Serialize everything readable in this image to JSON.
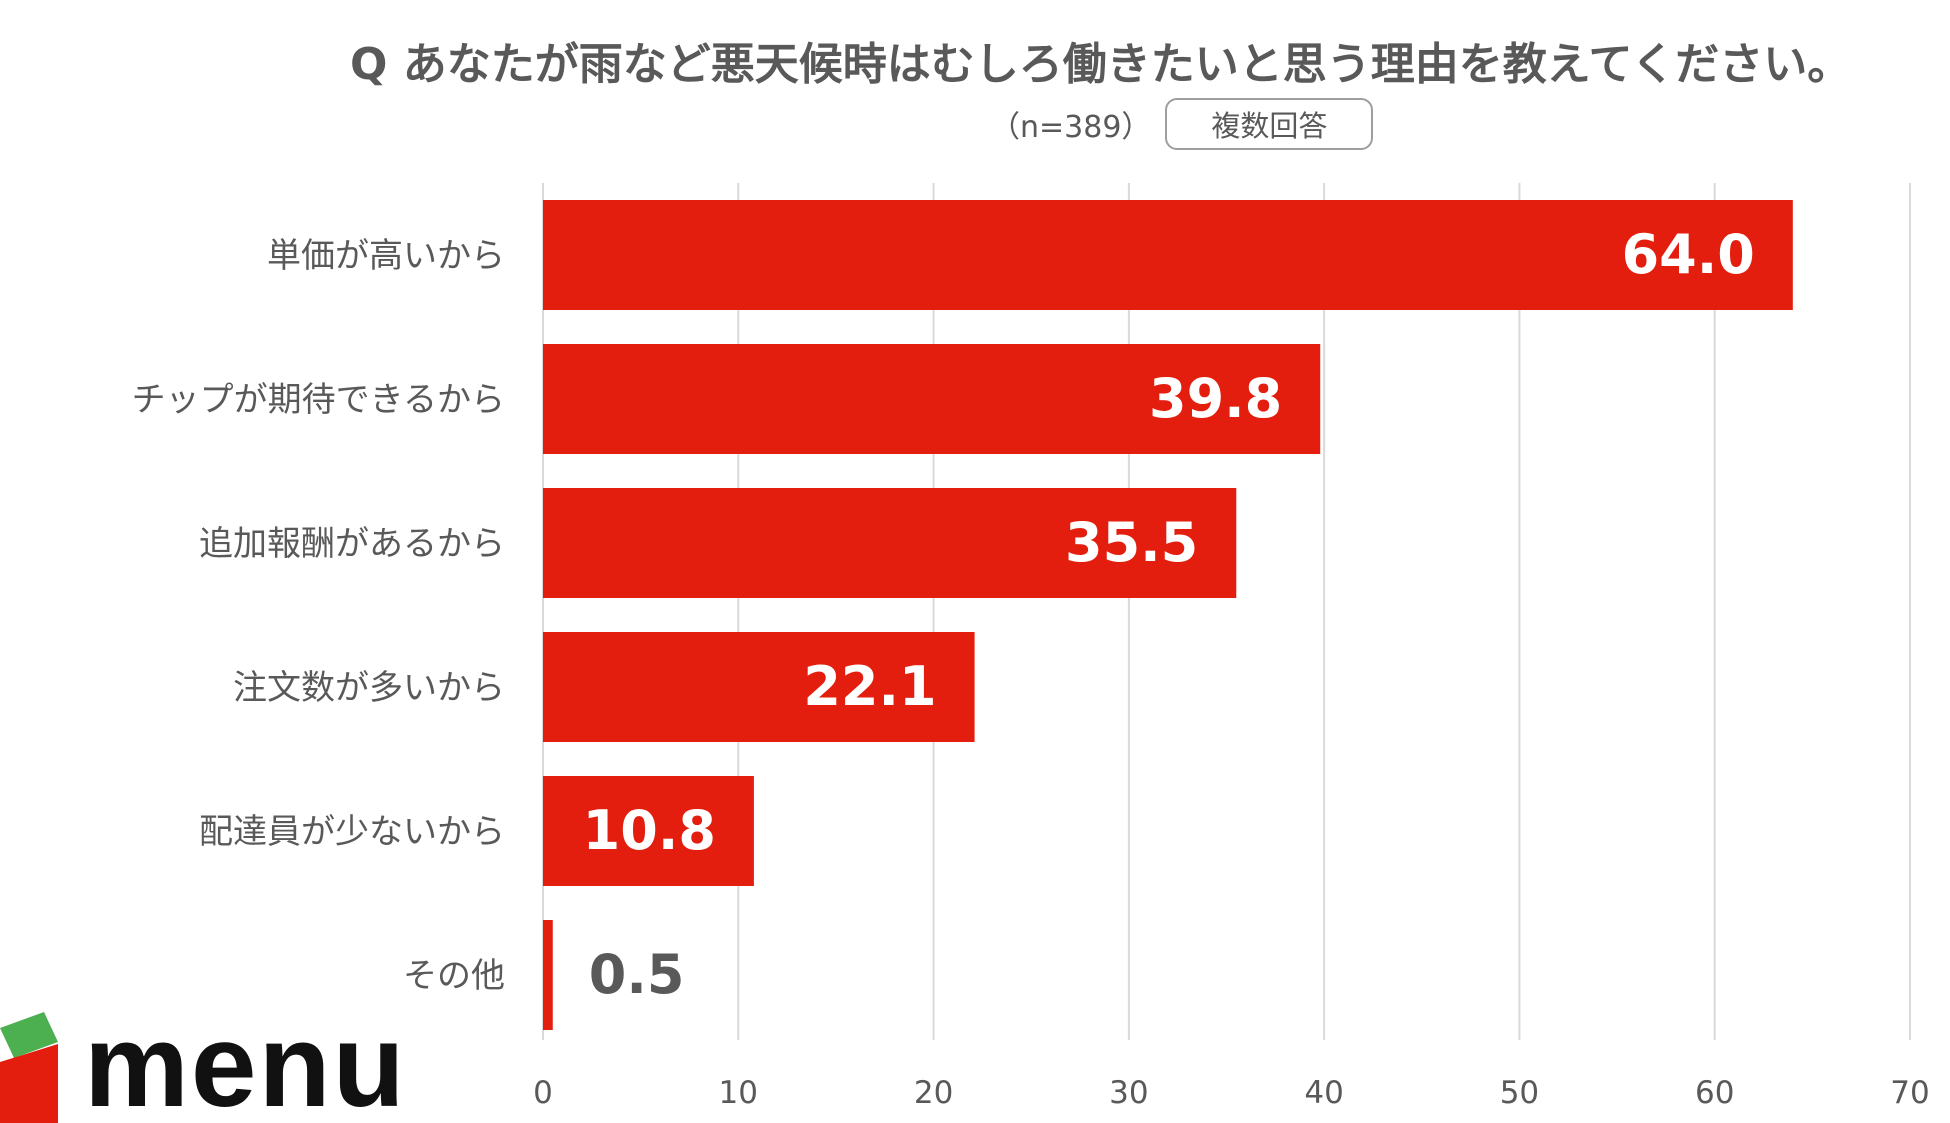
{
  "title": "Q あなたが雨など悪天候時はむしろ働きたいと思う理由を教えてください。",
  "sample_size": "（n=389）",
  "answer_type_badge": "複数回答",
  "logo_text": "menu",
  "colors": {
    "bar": "#E41E0E",
    "grid": "#D9D9D9",
    "text": "#595959",
    "label_inside": "#FFFFFF",
    "logo_green": "#4CAF50",
    "logo_red": "#E41E0E"
  },
  "chart_data": {
    "type": "bar",
    "orientation": "horizontal",
    "categories": [
      "単価が高いから",
      "チップが期待できるから",
      "追加報酬があるから",
      "注文数が多いから",
      "配達員が少ないから",
      "その他"
    ],
    "values": [
      64.0,
      39.8,
      35.5,
      22.1,
      10.8,
      0.5
    ],
    "value_labels": [
      "64.0",
      "39.8",
      "35.5",
      "22.1",
      "10.8",
      "0.5"
    ],
    "xlim": [
      0,
      70
    ],
    "xticks": [
      "0",
      "10",
      "20",
      "30",
      "40",
      "50",
      "60",
      "70"
    ],
    "grid": "vertical",
    "xlabel": "",
    "ylabel": ""
  }
}
